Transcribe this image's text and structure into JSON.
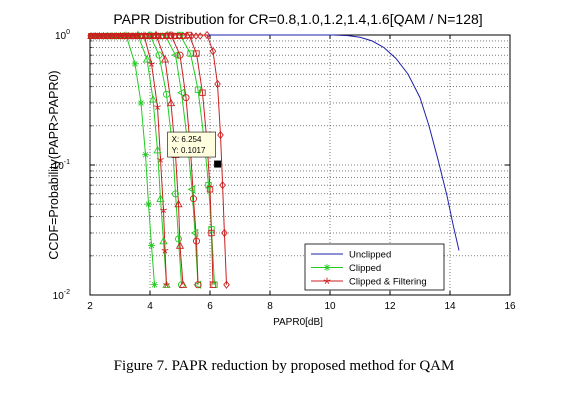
{
  "figure": {
    "caption": "Figure 7. PAPR reduction by proposed method for QAM"
  },
  "chart_data": {
    "type": "line",
    "title": "PAPR Distribution for CR=0.8,1.0,1.2,1.4,1.6[QAM / N=128]",
    "xlabel": "PAPR0[dB]",
    "ylabel": "CCDF=Probability(PAPR>PAPR0)",
    "xlim": [
      2,
      16
    ],
    "ylim": [
      0.01,
      1
    ],
    "yscale": "log",
    "grid": true,
    "xticks": [
      {
        "value": 2,
        "label": "2"
      },
      {
        "value": 4,
        "label": "4"
      },
      {
        "value": 6,
        "label": "6"
      },
      {
        "value": 8,
        "label": "8"
      },
      {
        "value": 10,
        "label": "10"
      },
      {
        "value": 12,
        "label": "12"
      },
      {
        "value": 14,
        "label": "14"
      },
      {
        "value": 16,
        "label": "16"
      }
    ],
    "yticks": [
      {
        "value": 1,
        "mant": "10",
        "exp": "0"
      },
      {
        "value": 0.1,
        "mant": "10",
        "exp": "-1"
      },
      {
        "value": 0.01,
        "mant": "10",
        "exp": "-2"
      }
    ],
    "legend": {
      "position": "bottom-right",
      "entries": [
        {
          "label": "Unclipped",
          "color": "#1f1fa8",
          "marker": "none"
        },
        {
          "label": "Clipped",
          "color": "#22cc22",
          "marker": "asterisk"
        },
        {
          "label": "Clipped & Filtering",
          "color": "#cc1f1f",
          "marker": "star"
        }
      ]
    },
    "datatip": {
      "x": 6.254,
      "y": 0.1017,
      "x_text": "X: 6.254",
      "y_text": "Y: 0.1017"
    },
    "series": [
      {
        "group": "Unclipped",
        "color": "#1f1fa8",
        "marker": "none",
        "points": [
          [
            2,
            1
          ],
          [
            10.1,
            1
          ],
          [
            10.6,
            0.99
          ],
          [
            11.0,
            0.96
          ],
          [
            11.4,
            0.9
          ],
          [
            11.8,
            0.8
          ],
          [
            12.2,
            0.66
          ],
          [
            12.6,
            0.5
          ],
          [
            13.0,
            0.33
          ],
          [
            13.3,
            0.2
          ],
          [
            13.6,
            0.11
          ],
          [
            13.9,
            0.058
          ],
          [
            14.1,
            0.035
          ],
          [
            14.3,
            0.022
          ]
        ]
      },
      {
        "group": "Clipped",
        "color": "#22cc22",
        "marker": "asterisk",
        "points": [
          [
            2,
            1
          ],
          [
            3.2,
            1
          ],
          [
            3.5,
            0.6
          ],
          [
            3.7,
            0.3
          ],
          [
            3.85,
            0.12
          ],
          [
            3.95,
            0.05
          ],
          [
            4.05,
            0.024
          ],
          [
            4.15,
            0.012
          ]
        ]
      },
      {
        "group": "Clipped",
        "color": "#22cc22",
        "marker": "triangle",
        "points": [
          [
            2,
            1
          ],
          [
            3.6,
            1
          ],
          [
            3.9,
            0.65
          ],
          [
            4.1,
            0.32
          ],
          [
            4.25,
            0.13
          ],
          [
            4.35,
            0.055
          ],
          [
            4.45,
            0.026
          ],
          [
            4.55,
            0.012
          ]
        ]
      },
      {
        "group": "Clipped",
        "color": "#22cc22",
        "marker": "circle",
        "points": [
          [
            2,
            1
          ],
          [
            4.0,
            1
          ],
          [
            4.3,
            0.7
          ],
          [
            4.55,
            0.35
          ],
          [
            4.75,
            0.14
          ],
          [
            4.85,
            0.06
          ],
          [
            4.95,
            0.027
          ],
          [
            5.05,
            0.012
          ]
        ]
      },
      {
        "group": "Clipped",
        "color": "#22cc22",
        "marker": "triangle-left",
        "points": [
          [
            2,
            1
          ],
          [
            4.5,
            1
          ],
          [
            4.85,
            0.7
          ],
          [
            5.05,
            0.36
          ],
          [
            5.25,
            0.15
          ],
          [
            5.4,
            0.065
          ],
          [
            5.5,
            0.03
          ],
          [
            5.6,
            0.012
          ]
        ]
      },
      {
        "group": "Clipped",
        "color": "#22cc22",
        "marker": "square",
        "points": [
          [
            2,
            1
          ],
          [
            5.0,
            1
          ],
          [
            5.35,
            0.72
          ],
          [
            5.6,
            0.38
          ],
          [
            5.8,
            0.16
          ],
          [
            5.95,
            0.07
          ],
          [
            6.05,
            0.032
          ],
          [
            6.15,
            0.012
          ]
        ]
      },
      {
        "group": "Clipped & Filtering",
        "color": "#cc1f1f",
        "marker": "star",
        "points": [
          [
            2,
            1
          ],
          [
            3.8,
            1
          ],
          [
            4.05,
            0.6
          ],
          [
            4.25,
            0.28
          ],
          [
            4.35,
            0.11
          ],
          [
            4.45,
            0.045
          ],
          [
            4.5,
            0.022
          ],
          [
            4.55,
            0.012
          ]
        ]
      },
      {
        "group": "Clipped & Filtering",
        "color": "#cc1f1f",
        "marker": "triangle",
        "points": [
          [
            2,
            1
          ],
          [
            4.2,
            1
          ],
          [
            4.5,
            0.65
          ],
          [
            4.7,
            0.3
          ],
          [
            4.85,
            0.12
          ],
          [
            4.95,
            0.05
          ],
          [
            5.0,
            0.024
          ],
          [
            5.1,
            0.012
          ]
        ]
      },
      {
        "group": "Clipped & Filtering",
        "color": "#cc1f1f",
        "marker": "circle",
        "points": [
          [
            2,
            1
          ],
          [
            4.7,
            1
          ],
          [
            5.0,
            0.7
          ],
          [
            5.2,
            0.33
          ],
          [
            5.35,
            0.13
          ],
          [
            5.45,
            0.055
          ],
          [
            5.55,
            0.026
          ],
          [
            5.6,
            0.012
          ]
        ]
      },
      {
        "group": "Clipped & Filtering",
        "color": "#cc1f1f",
        "marker": "square",
        "points": [
          [
            2,
            1
          ],
          [
            5.3,
            1
          ],
          [
            5.55,
            0.72
          ],
          [
            5.75,
            0.36
          ],
          [
            5.9,
            0.15
          ],
          [
            6.0,
            0.065
          ],
          [
            6.05,
            0.03
          ],
          [
            6.1,
            0.012
          ]
        ]
      },
      {
        "group": "Clipped & Filtering",
        "color": "#cc1f1f",
        "marker": "diamond",
        "points": [
          [
            2,
            1
          ],
          [
            5.9,
            1
          ],
          [
            6.1,
            0.75
          ],
          [
            6.25,
            0.42
          ],
          [
            6.35,
            0.17
          ],
          [
            6.42,
            0.07
          ],
          [
            6.48,
            0.03
          ],
          [
            6.55,
            0.012
          ]
        ]
      }
    ]
  }
}
